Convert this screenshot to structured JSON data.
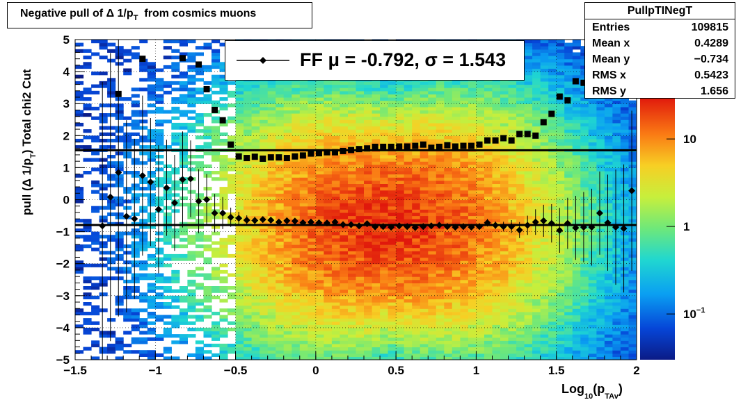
{
  "title": {
    "prefix": "Negative pull of",
    "delta": "Δ",
    "text": "1/p",
    "sub": "T",
    "suffix": "from cosmics muons"
  },
  "stats": {
    "name": "PullpTINegT",
    "rows": [
      {
        "key": "Entries",
        "value": "109815"
      },
      {
        "key": "Mean x",
        "value": "0.4289"
      },
      {
        "key": "Mean y",
        "value": "−0.734"
      },
      {
        "key": "RMS x",
        "value": "0.5423"
      },
      {
        "key": "RMS y",
        "value": "1.656"
      }
    ]
  },
  "legend": {
    "text": "FF μ = -0.792, σ =   1.543"
  },
  "colors": {
    "mean_marker": "#000000",
    "sigma_marker": "#000000",
    "fit_line": "#000000",
    "frame": "#000000"
  },
  "chart_data": {
    "type": "heatmap",
    "xlabel": {
      "main": "Log",
      "sub1": "10",
      "paren_open": "(p",
      "sub2": "TAv",
      "paren_close": ")"
    },
    "ylabel": {
      "main": "pull (Δ 1/p",
      "sub": "T",
      "rest": ")  Total chi2 Cut"
    },
    "xlim": [
      -1.5,
      2
    ],
    "ylim": [
      -5,
      5
    ],
    "x_ticks": [
      "−1.5",
      "−1",
      "−0.5",
      "0",
      "0.5",
      "1",
      "1.5",
      "2"
    ],
    "x_tick_values": [
      -1.5,
      -1,
      -0.5,
      0,
      0.5,
      1,
      1.5,
      2
    ],
    "y_ticks": [
      "−5",
      "−4",
      "−3",
      "−2",
      "−1",
      "0",
      "1",
      "2",
      "3",
      "4",
      "5"
    ],
    "y_tick_values": [
      -5,
      -4,
      -3,
      -2,
      -1,
      0,
      1,
      2,
      3,
      4,
      5
    ],
    "grid": true,
    "z_scale": "log",
    "z_ticks": [
      {
        "label": "10",
        "exp": "−1",
        "value": 0.1
      },
      {
        "label": "1",
        "exp": "",
        "value": 1
      },
      {
        "label": "10",
        "exp": "",
        "value": 10
      }
    ],
    "zlim": [
      0.03,
      30
    ],
    "fit_lines": [
      {
        "name": "mean",
        "y": -0.792
      },
      {
        "name": "sigma",
        "y": 1.543
      }
    ],
    "series": [
      {
        "name": "mean",
        "marker": "diamond",
        "points": [
          [
            -1.33,
            -0.82,
            4.5
          ],
          [
            -1.28,
            0.08,
            4.5
          ],
          [
            -1.23,
            0.85,
            4.5
          ],
          [
            -1.18,
            -0.52,
            3.0
          ],
          [
            -1.13,
            -0.6,
            2.5
          ],
          [
            -1.08,
            0.75,
            2.5
          ],
          [
            -1.03,
            0.55,
            2.0
          ],
          [
            -0.98,
            -0.3,
            2.0
          ],
          [
            -0.93,
            0.37,
            1.5
          ],
          [
            -0.88,
            -0.1,
            1.5
          ],
          [
            -0.83,
            0.63,
            1.5
          ],
          [
            -0.78,
            0.65,
            1.2
          ],
          [
            -0.73,
            -0.05,
            1.0
          ],
          [
            -0.68,
            0.0,
            0.8
          ],
          [
            -0.63,
            -0.42,
            0.6
          ],
          [
            -0.58,
            -0.42,
            0.5
          ],
          [
            -0.53,
            -0.55,
            0.3
          ],
          [
            -0.48,
            -0.58,
            0.2
          ],
          [
            -0.43,
            -0.64,
            0.15
          ],
          [
            -0.38,
            -0.65,
            0.12
          ],
          [
            -0.33,
            -0.62,
            0.1
          ],
          [
            -0.28,
            -0.64,
            0.1
          ],
          [
            -0.23,
            -0.7,
            0.1
          ],
          [
            -0.18,
            -0.66,
            0.1
          ],
          [
            -0.13,
            -0.67,
            0.1
          ],
          [
            -0.08,
            -0.72,
            0.1
          ],
          [
            -0.03,
            -0.7,
            0.1
          ],
          [
            0.02,
            -0.72,
            0.1
          ],
          [
            0.07,
            -0.73,
            0.1
          ],
          [
            0.12,
            -0.7,
            0.1
          ],
          [
            0.17,
            -0.78,
            0.1
          ],
          [
            0.22,
            -0.78,
            0.1
          ],
          [
            0.27,
            -0.82,
            0.1
          ],
          [
            0.32,
            -0.75,
            0.1
          ],
          [
            0.37,
            -0.85,
            0.1
          ],
          [
            0.42,
            -0.84,
            0.1
          ],
          [
            0.47,
            -0.86,
            0.1
          ],
          [
            0.52,
            -0.82,
            0.1
          ],
          [
            0.57,
            -0.84,
            0.1
          ],
          [
            0.62,
            -0.87,
            0.1
          ],
          [
            0.67,
            -0.84,
            0.1
          ],
          [
            0.72,
            -0.82,
            0.1
          ],
          [
            0.77,
            -0.8,
            0.1
          ],
          [
            0.82,
            -0.84,
            0.1
          ],
          [
            0.87,
            -0.86,
            0.1
          ],
          [
            0.92,
            -0.84,
            0.1
          ],
          [
            0.97,
            -0.86,
            0.1
          ],
          [
            1.02,
            -0.84,
            0.1
          ],
          [
            1.07,
            -0.72,
            0.12
          ],
          [
            1.12,
            -0.8,
            0.12
          ],
          [
            1.17,
            -0.84,
            0.15
          ],
          [
            1.22,
            -0.84,
            0.2
          ],
          [
            1.27,
            -0.95,
            0.25
          ],
          [
            1.32,
            -0.8,
            0.3
          ],
          [
            1.37,
            -0.7,
            0.4
          ],
          [
            1.42,
            -0.66,
            0.5
          ],
          [
            1.47,
            -0.74,
            0.6
          ],
          [
            1.52,
            -0.96,
            0.7
          ],
          [
            1.57,
            -0.74,
            0.8
          ],
          [
            1.62,
            -0.88,
            1.0
          ],
          [
            1.67,
            -0.86,
            1.1
          ],
          [
            1.72,
            -0.86,
            1.2
          ],
          [
            1.77,
            -0.42,
            1.3
          ],
          [
            1.82,
            -0.72,
            1.5
          ],
          [
            1.87,
            -0.86,
            1.8
          ],
          [
            1.92,
            -0.9,
            2.0
          ],
          [
            1.97,
            0.28,
            2.5
          ],
          [
            2.02,
            0.62,
            3.0
          ]
        ]
      },
      {
        "name": "sigma",
        "marker": "square",
        "points": [
          [
            -1.23,
            3.3
          ],
          [
            -1.08,
            4.4
          ],
          [
            -0.83,
            4.42
          ],
          [
            -0.73,
            4.22
          ],
          [
            -0.68,
            3.45
          ],
          [
            -0.63,
            2.8
          ],
          [
            -0.58,
            2.48
          ],
          [
            -0.53,
            1.72
          ],
          [
            -0.48,
            1.35
          ],
          [
            -0.43,
            1.3
          ],
          [
            -0.38,
            1.34
          ],
          [
            -0.33,
            1.28
          ],
          [
            -0.28,
            1.32
          ],
          [
            -0.23,
            1.32
          ],
          [
            -0.18,
            1.3
          ],
          [
            -0.13,
            1.35
          ],
          [
            -0.08,
            1.38
          ],
          [
            -0.03,
            1.44
          ],
          [
            0.02,
            1.45
          ],
          [
            0.07,
            1.48
          ],
          [
            0.12,
            1.48
          ],
          [
            0.17,
            1.52
          ],
          [
            0.22,
            1.55
          ],
          [
            0.27,
            1.58
          ],
          [
            0.32,
            1.6
          ],
          [
            0.37,
            1.65
          ],
          [
            0.42,
            1.65
          ],
          [
            0.47,
            1.65
          ],
          [
            0.52,
            1.66
          ],
          [
            0.57,
            1.66
          ],
          [
            0.62,
            1.68
          ],
          [
            0.67,
            1.72
          ],
          [
            0.72,
            1.62
          ],
          [
            0.77,
            1.65
          ],
          [
            0.82,
            1.7
          ],
          [
            0.87,
            1.66
          ],
          [
            0.92,
            1.68
          ],
          [
            0.97,
            1.68
          ],
          [
            1.02,
            1.72
          ],
          [
            1.07,
            1.85
          ],
          [
            1.12,
            1.85
          ],
          [
            1.17,
            1.92
          ],
          [
            1.22,
            1.85
          ],
          [
            1.27,
            2.05
          ],
          [
            1.32,
            2.05
          ],
          [
            1.37,
            2.0
          ],
          [
            1.42,
            2.42
          ],
          [
            1.47,
            2.68
          ],
          [
            1.52,
            3.22
          ],
          [
            1.57,
            3.1
          ],
          [
            1.62,
            3.7
          ],
          [
            1.67,
            3.65
          ],
          [
            1.72,
            3.45
          ],
          [
            1.82,
            4.75
          ]
        ]
      }
    ]
  }
}
